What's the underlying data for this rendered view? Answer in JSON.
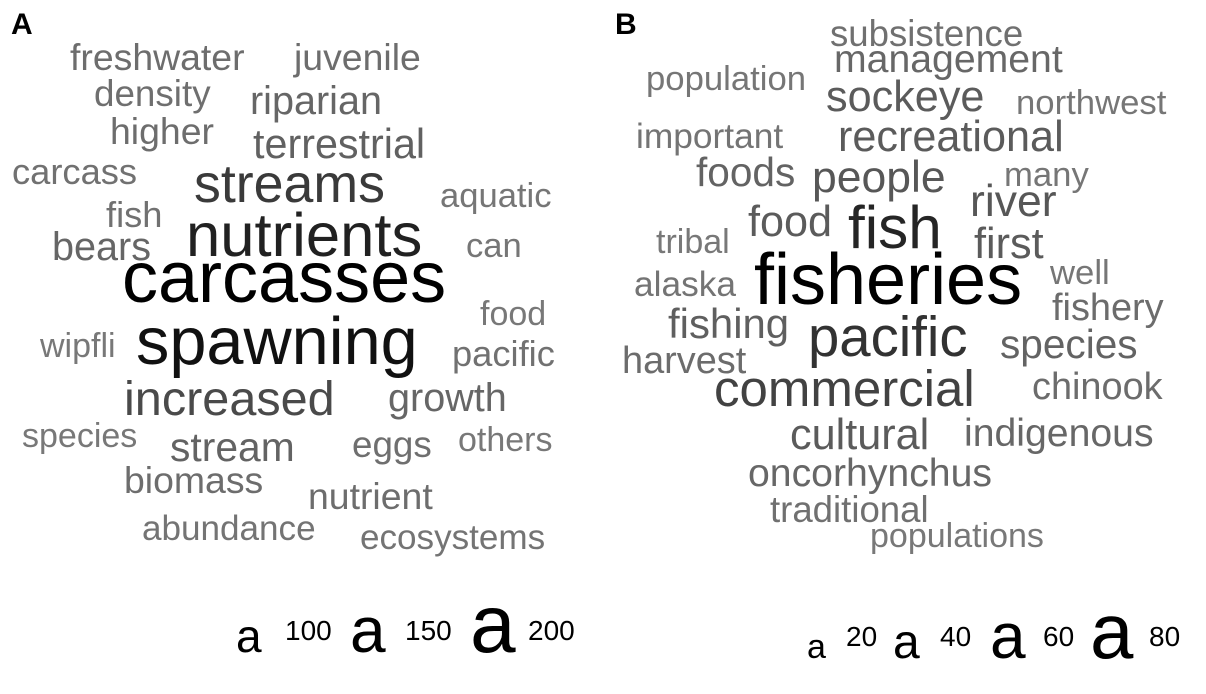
{
  "chart_data": [
    {
      "type": "wordcloud",
      "panel_label": "A",
      "words": [
        {
          "word": "carcasses",
          "freq": 215
        },
        {
          "word": "spawning",
          "freq": 196
        },
        {
          "word": "nutrients",
          "freq": 178
        },
        {
          "word": "streams",
          "freq": 150
        },
        {
          "word": "increased",
          "freq": 132
        },
        {
          "word": "terrestrial",
          "freq": 106
        },
        {
          "word": "stream",
          "freq": 104
        },
        {
          "word": "riparian",
          "freq": 100
        },
        {
          "word": "bears",
          "freq": 100
        },
        {
          "word": "growth",
          "freq": 100
        },
        {
          "word": "juvenile",
          "freq": 92
        },
        {
          "word": "higher",
          "freq": 92
        },
        {
          "word": "freshwater",
          "freq": 92
        },
        {
          "word": "biomass",
          "freq": 92
        },
        {
          "word": "nutrient",
          "freq": 92
        },
        {
          "word": "density",
          "freq": 90
        },
        {
          "word": "eggs",
          "freq": 90
        },
        {
          "word": "carcass",
          "freq": 88
        },
        {
          "word": "fish",
          "freq": 88
        },
        {
          "word": "pacific",
          "freq": 88
        },
        {
          "word": "abundance",
          "freq": 84
        },
        {
          "word": "ecosystems",
          "freq": 84
        },
        {
          "word": "aquatic",
          "freq": 82
        },
        {
          "word": "can",
          "freq": 82
        },
        {
          "word": "food",
          "freq": 80
        },
        {
          "word": "wipfli",
          "freq": 80
        },
        {
          "word": "species",
          "freq": 80
        },
        {
          "word": "others",
          "freq": 80
        }
      ],
      "legend": {
        "values": [
          100,
          150,
          200
        ]
      }
    },
    {
      "type": "wordcloud",
      "panel_label": "B",
      "words": [
        {
          "word": "fisheries",
          "freq": 90
        },
        {
          "word": "fish",
          "freq": 72
        },
        {
          "word": "pacific",
          "freq": 66
        },
        {
          "word": "commercial",
          "freq": 58
        },
        {
          "word": "river",
          "freq": 48
        },
        {
          "word": "recreational",
          "freq": 46
        },
        {
          "word": "sockeye",
          "freq": 46
        },
        {
          "word": "people",
          "freq": 48
        },
        {
          "word": "food",
          "freq": 46
        },
        {
          "word": "first",
          "freq": 46
        },
        {
          "word": "cultural",
          "freq": 46
        },
        {
          "word": "fishing",
          "freq": 44
        },
        {
          "word": "species",
          "freq": 42
        },
        {
          "word": "foods",
          "freq": 42
        },
        {
          "word": "management",
          "freq": 40
        },
        {
          "word": "oncorhynchus",
          "freq": 40
        },
        {
          "word": "indigenous",
          "freq": 40
        },
        {
          "word": "fishery",
          "freq": 38
        },
        {
          "word": "harvest",
          "freq": 38
        },
        {
          "word": "chinook",
          "freq": 38
        },
        {
          "word": "subsistence",
          "freq": 36
        },
        {
          "word": "traditional",
          "freq": 36
        },
        {
          "word": "important",
          "freq": 34
        },
        {
          "word": "alaska",
          "freq": 34
        },
        {
          "word": "population",
          "freq": 33
        },
        {
          "word": "northwest",
          "freq": 33
        },
        {
          "word": "many",
          "freq": 33
        },
        {
          "word": "well",
          "freq": 33
        },
        {
          "word": "tribal",
          "freq": 32
        },
        {
          "word": "populations",
          "freq": 32
        }
      ],
      "legend": {
        "values": [
          20,
          40,
          60,
          80
        ]
      }
    }
  ]
}
